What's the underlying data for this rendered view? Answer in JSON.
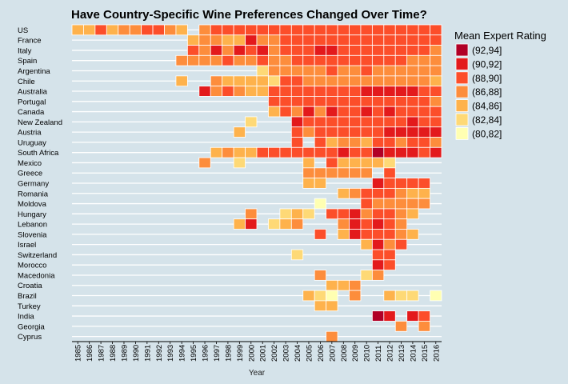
{
  "chart_data": {
    "type": "heatmap",
    "title": "Have Country-Specific Wine Preferences Changed Over Time?",
    "xlabel": "Year",
    "ylabel": "",
    "years": [
      1985,
      1986,
      1987,
      1988,
      1989,
      1990,
      1991,
      1992,
      1993,
      1994,
      1995,
      1996,
      1997,
      1998,
      1999,
      2000,
      2001,
      2002,
      2003,
      2004,
      2005,
      2006,
      2007,
      2008,
      2009,
      2010,
      2011,
      2012,
      2013,
      2014,
      2015,
      2016
    ],
    "countries": [
      "US",
      "France",
      "Italy",
      "Spain",
      "Argentina",
      "Chile",
      "Australia",
      "Portugal",
      "Canada",
      "New Zealand",
      "Austria",
      "Uruguay",
      "South Africa",
      "Mexico",
      "Greece",
      "Germany",
      "Romania",
      "Moldova",
      "Hungary",
      "Lebanon",
      "Slovenia",
      "Israel",
      "Switzerland",
      "Morocco",
      "Macedonia",
      "Croatia",
      "Brazil",
      "Turkey",
      "India",
      "Georgia",
      "Cyprus"
    ],
    "legend": {
      "title": "Mean Expert Rating",
      "bins": [
        {
          "label": "(92,94]",
          "color": "#b10026"
        },
        {
          "label": "(90,92]",
          "color": "#e31a1c"
        },
        {
          "label": "(88,90]",
          "color": "#fc4e2a"
        },
        {
          "label": "(86,88]",
          "color": "#fd8d3c"
        },
        {
          "label": "(84,86]",
          "color": "#feb24c"
        },
        {
          "label": "(82,84]",
          "color": "#fed976"
        },
        {
          "label": "(80,82]",
          "color": "#ffffb2"
        }
      ]
    },
    "rows": {
      "US": [
        "(84,86]",
        "(84,86]",
        "(88,90]",
        "(84,86]",
        "(86,88]",
        "(86,88]",
        "(88,90]",
        "(88,90]",
        "(86,88]",
        "(84,86]",
        null,
        "(86,88]",
        "(88,90]",
        "(88,90]",
        "(88,90]",
        "(88,90]",
        "(88,90]",
        "(88,90]",
        "(88,90]",
        "(88,90]",
        "(88,90]",
        "(88,90]",
        "(88,90]",
        "(88,90]",
        "(88,90]",
        "(88,90]",
        "(88,90]",
        "(88,90]",
        "(88,90]",
        "(88,90]",
        "(88,90]",
        "(88,90]"
      ],
      "France": [
        null,
        null,
        null,
        null,
        null,
        null,
        null,
        null,
        null,
        null,
        "(84,86]",
        "(86,88]",
        "(86,88]",
        "(84,86]",
        "(84,86]",
        "(90,92]",
        "(86,88]",
        "(86,88]",
        "(88,90]",
        "(88,90]",
        "(88,90]",
        "(88,90]",
        "(88,90]",
        "(88,90]",
        "(88,90]",
        "(88,90]",
        "(88,90]",
        "(88,90]",
        "(88,90]",
        "(88,90]",
        "(88,90]",
        "(88,90]"
      ],
      "Italy": [
        null,
        null,
        null,
        null,
        null,
        null,
        null,
        null,
        null,
        null,
        "(88,90]",
        "(86,88]",
        "(90,92]",
        "(86,88]",
        "(90,92]",
        "(88,90]",
        "(90,92]",
        "(86,88]",
        "(88,90]",
        "(88,90]",
        "(88,90]",
        "(90,92]",
        "(90,92]",
        "(88,90]",
        "(88,90]",
        "(88,90]",
        "(88,90]",
        "(88,90]",
        "(88,90]",
        "(88,90]",
        "(88,90]",
        "(86,88]"
      ],
      "Spain": [
        null,
        null,
        null,
        null,
        null,
        null,
        null,
        null,
        null,
        "(86,88]",
        "(86,88]",
        "(86,88]",
        "(86,88]",
        "(88,90]",
        "(86,88]",
        "(86,88]",
        "(88,90]",
        "(86,88]",
        "(86,88]",
        "(88,90]",
        "(88,90]",
        "(88,90]",
        "(88,90]",
        "(88,90]",
        "(88,90]",
        "(88,90]",
        "(88,90]",
        "(88,90]",
        "(88,90]",
        "(86,88]",
        "(86,88]",
        "(86,88]"
      ],
      "Argentina": [
        null,
        null,
        null,
        null,
        null,
        null,
        null,
        null,
        null,
        null,
        null,
        null,
        null,
        null,
        null,
        null,
        "(82,84]",
        "(86,88]",
        "(86,88]",
        "(86,88]",
        "(86,88]",
        "(86,88]",
        "(88,90]",
        "(86,88]",
        "(86,88]",
        "(88,90]",
        "(86,88]",
        "(86,88]",
        "(86,88]",
        "(86,88]",
        "(86,88]",
        "(86,88]"
      ],
      "Chile": [
        null,
        null,
        null,
        null,
        null,
        null,
        null,
        null,
        null,
        "(84,86]",
        null,
        null,
        "(86,88]",
        "(84,86]",
        "(84,86]",
        "(84,86]",
        "(84,86]",
        "(82,84]",
        "(88,90]",
        "(88,90]",
        "(86,88]",
        "(86,88]",
        "(86,88]",
        "(86,88]",
        "(86,88]",
        "(86,88]",
        "(86,88]",
        "(86,88]",
        "(86,88]",
        "(86,88]",
        "(86,88]",
        "(84,86]"
      ],
      "Australia": [
        null,
        null,
        null,
        null,
        null,
        null,
        null,
        null,
        null,
        null,
        null,
        "(90,92]",
        "(86,88]",
        "(88,90]",
        "(86,88]",
        "(84,86]",
        "(84,86]",
        "(88,90]",
        "(88,90]",
        "(88,90]",
        "(88,90]",
        "(88,90]",
        "(88,90]",
        "(88,90]",
        "(88,90]",
        "(90,92]",
        "(90,92]",
        "(90,92]",
        "(90,92]",
        "(90,92]",
        "(88,90]",
        "(88,90]"
      ],
      "Portugal": [
        null,
        null,
        null,
        null,
        null,
        null,
        null,
        null,
        null,
        null,
        null,
        null,
        null,
        null,
        null,
        null,
        null,
        "(88,90]",
        "(88,90]",
        "(88,90]",
        "(88,90]",
        "(88,90]",
        "(88,90]",
        "(88,90]",
        "(88,90]",
        "(88,90]",
        "(88,90]",
        "(88,90]",
        "(88,90]",
        "(88,90]",
        "(88,90]",
        "(86,88]"
      ],
      "Canada": [
        null,
        null,
        null,
        null,
        null,
        null,
        null,
        null,
        null,
        null,
        null,
        null,
        null,
        null,
        null,
        null,
        null,
        "(84,86]",
        "(88,90]",
        "(86,88]",
        "(90,92]",
        "(86,88]",
        "(90,92]",
        "(88,90]",
        "(88,90]",
        "(90,92]",
        "(88,90]",
        "(90,92]",
        "(88,90]",
        "(88,90]",
        "(88,90]",
        "(88,90]"
      ],
      "New Zealand": [
        null,
        null,
        null,
        null,
        null,
        null,
        null,
        null,
        null,
        null,
        null,
        null,
        null,
        null,
        null,
        "(82,84]",
        null,
        null,
        null,
        "(90,92]",
        "(88,90]",
        "(88,90]",
        "(88,90]",
        "(88,90]",
        "(88,90]",
        "(88,90]",
        "(88,90]",
        "(88,90]",
        "(88,90]",
        "(90,92]",
        "(88,90]",
        "(88,90]"
      ],
      "Austria": [
        null,
        null,
        null,
        null,
        null,
        null,
        null,
        null,
        null,
        null,
        null,
        null,
        null,
        null,
        "(84,86]",
        null,
        null,
        null,
        null,
        "(88,90]",
        "(86,88]",
        "(88,90]",
        "(88,90]",
        "(88,90]",
        "(88,90]",
        "(88,90]",
        "(88,90]",
        "(90,92]",
        "(90,92]",
        "(90,92]",
        "(90,92]",
        "(90,92]"
      ],
      "Uruguay": [
        null,
        null,
        null,
        null,
        null,
        null,
        null,
        null,
        null,
        null,
        null,
        null,
        null,
        null,
        null,
        null,
        null,
        null,
        null,
        "(88,90]",
        null,
        "(88,90]",
        "(84,86]",
        "(86,88]",
        "(86,88]",
        "(84,86]",
        "(88,90]",
        "(88,90]",
        "(86,88]",
        "(88,90]",
        "(88,90]",
        "(86,88]"
      ],
      "South Africa": [
        null,
        null,
        null,
        null,
        null,
        null,
        null,
        null,
        null,
        null,
        null,
        null,
        "(84,86]",
        "(86,88]",
        "(84,86]",
        "(84,86]",
        "(88,90]",
        "(88,90]",
        "(88,90]",
        "(88,90]",
        "(88,90]",
        "(88,90]",
        "(88,90]",
        "(90,92]",
        "(88,90]",
        "(88,90]",
        "(92,94]",
        "(90,92]",
        "(90,92]",
        "(90,92]",
        "(88,90]",
        "(90,92]"
      ],
      "Mexico": [
        null,
        null,
        null,
        null,
        null,
        null,
        null,
        null,
        null,
        null,
        null,
        "(86,88]",
        null,
        null,
        "(82,84]",
        null,
        null,
        null,
        null,
        null,
        "(84,86]",
        null,
        "(88,90]",
        "(84,86]",
        "(84,86]",
        "(84,86]",
        "(84,86]",
        "(82,84]",
        null,
        null,
        null,
        null
      ],
      "Greece": [
        null,
        null,
        null,
        null,
        null,
        null,
        null,
        null,
        null,
        null,
        null,
        null,
        null,
        null,
        null,
        null,
        null,
        null,
        null,
        null,
        "(86,88]",
        "(86,88]",
        "(86,88]",
        "(86,88]",
        "(86,88]",
        "(86,88]",
        null,
        "(88,90]",
        null,
        null,
        null,
        null
      ],
      "Germany": [
        null,
        null,
        null,
        null,
        null,
        null,
        null,
        null,
        null,
        null,
        null,
        null,
        null,
        null,
        null,
        null,
        null,
        null,
        null,
        null,
        "(84,86]",
        "(84,86]",
        null,
        null,
        null,
        null,
        "(90,92]",
        "(88,90]",
        "(88,90]",
        "(88,90]",
        "(88,90]",
        null
      ],
      "Romania": [
        null,
        null,
        null,
        null,
        null,
        null,
        null,
        null,
        null,
        null,
        null,
        null,
        null,
        null,
        null,
        null,
        null,
        null,
        null,
        null,
        null,
        null,
        null,
        "(84,86]",
        "(86,88]",
        "(88,90]",
        "(88,90]",
        "(88,90]",
        "(86,88]",
        "(84,86]",
        "(84,86]",
        null
      ],
      "Moldova": [
        null,
        null,
        null,
        null,
        null,
        null,
        null,
        null,
        null,
        null,
        null,
        null,
        null,
        null,
        null,
        null,
        null,
        null,
        null,
        null,
        null,
        "(80,82]",
        null,
        null,
        null,
        "(88,90]",
        "(86,88]",
        "(86,88]",
        "(86,88]",
        "(86,88]",
        "(86,88]",
        null
      ],
      "Hungary": [
        null,
        null,
        null,
        null,
        null,
        null,
        null,
        null,
        null,
        null,
        null,
        null,
        null,
        null,
        null,
        "(86,88]",
        null,
        null,
        "(82,84]",
        "(84,86]",
        "(82,84]",
        null,
        "(88,90]",
        "(88,90]",
        "(90,92]",
        "(86,88]",
        "(88,90]",
        "(88,90]",
        "(86,88]",
        "(84,86]",
        null,
        null
      ],
      "Lebanon": [
        null,
        null,
        null,
        null,
        null,
        null,
        null,
        null,
        null,
        null,
        null,
        null,
        null,
        null,
        "(84,86]",
        "(90,92]",
        null,
        "(82,84]",
        "(84,86]",
        "(86,88]",
        null,
        null,
        null,
        "(86,88]",
        "(90,92]",
        "(88,90]",
        "(90,92]",
        "(88,90]",
        "(86,88]",
        null,
        null,
        null
      ],
      "Slovenia": [
        null,
        null,
        null,
        null,
        null,
        null,
        null,
        null,
        null,
        null,
        null,
        null,
        null,
        null,
        null,
        null,
        null,
        null,
        null,
        null,
        null,
        "(88,90]",
        null,
        "(84,86]",
        "(90,92]",
        "(88,90]",
        "(88,90]",
        "(88,90]",
        "(86,88]",
        "(84,86]",
        null,
        null
      ],
      "Israel": [
        null,
        null,
        null,
        null,
        null,
        null,
        null,
        null,
        null,
        null,
        null,
        null,
        null,
        null,
        null,
        null,
        null,
        null,
        null,
        null,
        null,
        null,
        null,
        null,
        null,
        "(84,86]",
        "(90,92]",
        "(86,88]",
        "(88,90]",
        null,
        null,
        null
      ],
      "Switzerland": [
        null,
        null,
        null,
        null,
        null,
        null,
        null,
        null,
        null,
        null,
        null,
        null,
        null,
        null,
        null,
        null,
        null,
        null,
        null,
        "(82,84]",
        null,
        null,
        null,
        null,
        null,
        null,
        "(88,90]",
        "(88,90]",
        null,
        null,
        null,
        null
      ],
      "Morocco": [
        null,
        null,
        null,
        null,
        null,
        null,
        null,
        null,
        null,
        null,
        null,
        null,
        null,
        null,
        null,
        null,
        null,
        null,
        null,
        null,
        null,
        null,
        null,
        null,
        null,
        null,
        "(90,92]",
        "(88,90]",
        null,
        null,
        null,
        null
      ],
      "Macedonia": [
        null,
        null,
        null,
        null,
        null,
        null,
        null,
        null,
        null,
        null,
        null,
        null,
        null,
        null,
        null,
        null,
        null,
        null,
        null,
        null,
        null,
        "(86,88]",
        null,
        null,
        null,
        "(82,84]",
        "(86,88]",
        null,
        null,
        null,
        null,
        null
      ],
      "Croatia": [
        null,
        null,
        null,
        null,
        null,
        null,
        null,
        null,
        null,
        null,
        null,
        null,
        null,
        null,
        null,
        null,
        null,
        null,
        null,
        null,
        null,
        null,
        "(84,86]",
        "(84,86]",
        "(86,88]",
        null,
        null,
        null,
        null,
        null,
        null,
        null
      ],
      "Brazil": [
        null,
        null,
        null,
        null,
        null,
        null,
        null,
        null,
        null,
        null,
        null,
        null,
        null,
        null,
        null,
        null,
        null,
        null,
        null,
        null,
        "(84,86]",
        "(82,84]",
        "(80,82]",
        null,
        "(86,88]",
        null,
        null,
        "(84,86]",
        "(82,84]",
        "(82,84]",
        null,
        "(80,82]"
      ],
      "Turkey": [
        null,
        null,
        null,
        null,
        null,
        null,
        null,
        null,
        null,
        null,
        null,
        null,
        null,
        null,
        null,
        null,
        null,
        null,
        null,
        null,
        null,
        "(84,86]",
        "(84,86]",
        null,
        null,
        null,
        null,
        null,
        null,
        null,
        null,
        null
      ],
      "India": [
        null,
        null,
        null,
        null,
        null,
        null,
        null,
        null,
        null,
        null,
        null,
        null,
        null,
        null,
        null,
        null,
        null,
        null,
        null,
        null,
        null,
        null,
        null,
        null,
        null,
        null,
        "(92,94]",
        "(90,92]",
        null,
        "(90,92]",
        "(88,90]",
        null
      ],
      "Georgia": [
        null,
        null,
        null,
        null,
        null,
        null,
        null,
        null,
        null,
        null,
        null,
        null,
        null,
        null,
        null,
        null,
        null,
        null,
        null,
        null,
        null,
        null,
        null,
        null,
        null,
        null,
        null,
        null,
        "(86,88]",
        null,
        "(86,88]",
        null
      ],
      "Cyprus": [
        null,
        null,
        null,
        null,
        null,
        null,
        null,
        null,
        null,
        null,
        null,
        null,
        null,
        null,
        null,
        null,
        null,
        null,
        null,
        null,
        null,
        null,
        "(86,88]",
        null,
        null,
        null,
        null,
        null,
        null,
        null,
        null,
        null
      ]
    }
  }
}
